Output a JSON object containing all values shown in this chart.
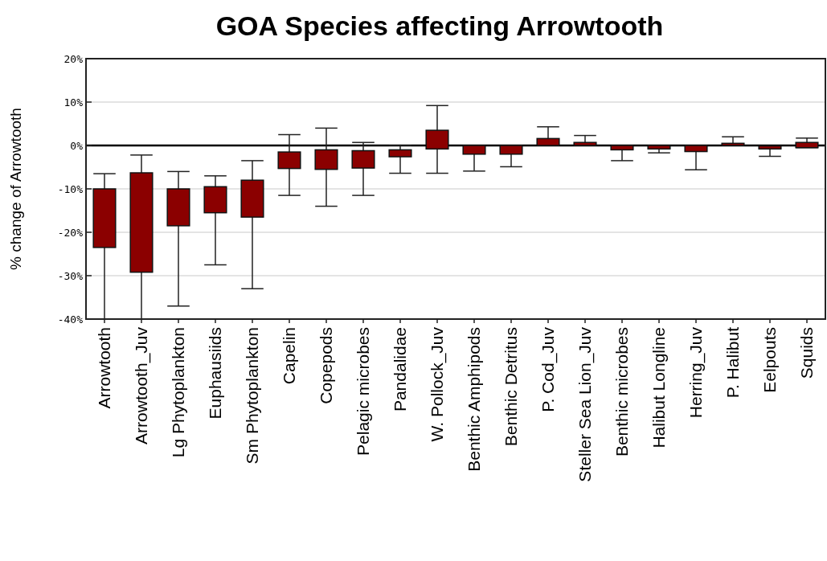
{
  "chart_data": {
    "type": "bar",
    "title": "GOA Species affecting Arrowtooth",
    "ylabel": "% change of Arrowtooth",
    "categories": [
      "Arrowtooth",
      "Arrowtooth_Juv",
      "Lg Phytoplankton",
      "Euphausiids",
      "Sm Phytoplankton",
      "Capelin",
      "Copepods",
      "Pelagic microbes",
      "Pandalidae",
      "W. Pollock_Juv",
      "Benthic Amphipods",
      "Benthic Detritus",
      "P. Cod_Juv",
      "Steller Sea Lion_Juv",
      "Benthic microbes",
      "Halibut Longline",
      "Herring_Juv",
      "P. Halibut",
      "Eelpouts",
      "Squids"
    ],
    "base": [
      -23.5,
      -29.2,
      -18.5,
      -15.5,
      -16.5,
      -5.3,
      -5.5,
      -5.2,
      -2.6,
      -0.8,
      -2,
      -2,
      0,
      0,
      -1,
      -0.8,
      -1.4,
      0,
      -0.8,
      -0.5
    ],
    "values": [
      13.5,
      22.9,
      8.5,
      6,
      8.5,
      3.8,
      4.5,
      4,
      1.6,
      4.3,
      2,
      2,
      1.6,
      0.7,
      1,
      0.8,
      1.4,
      0.5,
      0.7,
      1.2
    ],
    "errors": [
      [
        -40,
        -6.5
      ],
      [
        -40,
        -2.2
      ],
      [
        -37,
        -6
      ],
      [
        -27.5,
        -7
      ],
      [
        -33,
        -3.5
      ],
      [
        -11.5,
        2.5
      ],
      [
        -14,
        4
      ],
      [
        -11.5,
        0.7
      ],
      [
        -6.4,
        0
      ],
      [
        -6.4,
        9.2
      ],
      [
        -5.9,
        0
      ],
      [
        -4.9,
        0
      ],
      [
        0,
        4.3
      ],
      [
        0,
        2.3
      ],
      [
        -3.5,
        0
      ],
      [
        -1.7,
        0
      ],
      [
        -5.6,
        0
      ],
      [
        0,
        2
      ],
      [
        -2.5,
        -0.1
      ],
      [
        -0.5,
        1.7
      ]
    ],
    "color": "#8b0000",
    "ylim": [
      -40,
      20
    ],
    "yticks": [
      {
        "value": -40,
        "label": "-40%"
      },
      {
        "value": -30,
        "label": "-30%"
      },
      {
        "value": -20,
        "label": "-20%"
      },
      {
        "value": -10,
        "label": "-10%"
      },
      {
        "value": 0,
        "label": "0%"
      },
      {
        "value": 10,
        "label": "10%"
      },
      {
        "value": 20,
        "label": "20%"
      }
    ],
    "grid": "y",
    "ref_lines": [
      {
        "axis": "y",
        "value": 0,
        "color": "#000000"
      }
    ]
  }
}
